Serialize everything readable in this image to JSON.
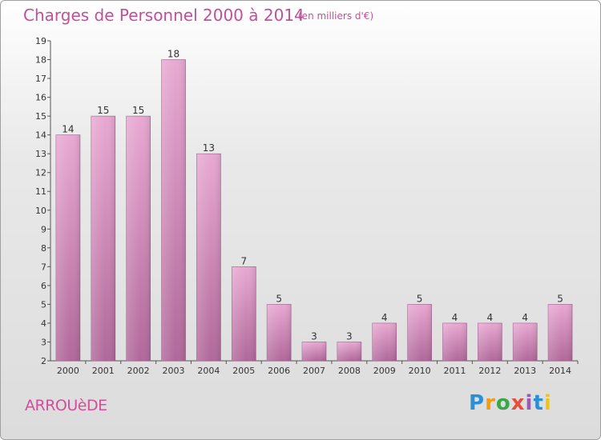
{
  "header": {
    "title": "Charges de Personnel 2000 à 2014",
    "subtitle": "(en milliers d'€)"
  },
  "footer": {
    "commune": "ARROUèDE",
    "logo_text": "Proxiti",
    "logo_colors": [
      "#2a8fd6",
      "#f39c12",
      "#3aa64a",
      "#e74c3c",
      "#9b59b6",
      "#2a8fd6",
      "#f1c40f"
    ]
  },
  "chart_data": {
    "type": "bar",
    "title": "Charges de Personnel 2000 à 2014",
    "subtitle": "(en milliers d'€)",
    "xlabel": "",
    "ylabel": "",
    "categories": [
      "2000",
      "2001",
      "2002",
      "2003",
      "2004",
      "2005",
      "2006",
      "2007",
      "2008",
      "2009",
      "2010",
      "2011",
      "2012",
      "2013",
      "2014"
    ],
    "values": [
      14,
      15,
      15,
      18,
      13,
      7,
      5,
      3,
      3,
      4,
      5,
      4,
      4,
      4,
      5
    ],
    "data_labels": [
      "14",
      "15",
      "15",
      "18",
      "13",
      "7",
      "5",
      "3",
      "3",
      "4",
      "5",
      "4",
      "4",
      "4",
      "5"
    ],
    "ylim": [
      2,
      19
    ],
    "yticks": [
      "2",
      "3",
      "4",
      "5",
      "6",
      "7",
      "8",
      "9",
      "10",
      "11",
      "12",
      "13",
      "14",
      "15",
      "16",
      "17",
      "18",
      "19"
    ],
    "grid": false,
    "legend": "none",
    "bar_color_top": "#e8a8d2",
    "bar_color_bottom": "#b0689a"
  }
}
